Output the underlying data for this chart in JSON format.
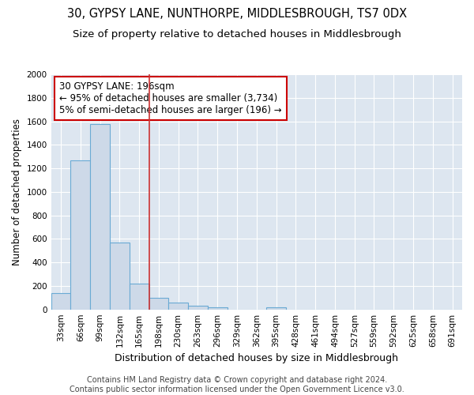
{
  "title": "30, GYPSY LANE, NUNTHORPE, MIDDLESBROUGH, TS7 0DX",
  "subtitle": "Size of property relative to detached houses in Middlesbrough",
  "xlabel": "Distribution of detached houses by size in Middlesbrough",
  "ylabel": "Number of detached properties",
  "bin_labels": [
    "33sqm",
    "66sqm",
    "99sqm",
    "132sqm",
    "165sqm",
    "198sqm",
    "230sqm",
    "263sqm",
    "296sqm",
    "329sqm",
    "362sqm",
    "395sqm",
    "428sqm",
    "461sqm",
    "494sqm",
    "527sqm",
    "559sqm",
    "592sqm",
    "625sqm",
    "658sqm",
    "691sqm"
  ],
  "bar_values": [
    140,
    1270,
    1575,
    570,
    220,
    100,
    55,
    30,
    20,
    0,
    0,
    20,
    0,
    0,
    0,
    0,
    0,
    0,
    0,
    0,
    0
  ],
  "bar_color": "#cdd9e8",
  "bar_edge_color": "#6aaad4",
  "annotation_text": "30 GYPSY LANE: 196sqm\n← 95% of detached houses are smaller (3,734)\n5% of semi-detached houses are larger (196) →",
  "annotation_box_color": "#ffffff",
  "annotation_box_edge": "#cc0000",
  "vline_color": "#cc3333",
  "background_color": "#dde6f0",
  "grid_color": "#ffffff",
  "fig_bg_color": "#ffffff",
  "ylim": [
    0,
    2000
  ],
  "yticks": [
    0,
    200,
    400,
    600,
    800,
    1000,
    1200,
    1400,
    1600,
    1800,
    2000
  ],
  "footnote": "Contains HM Land Registry data © Crown copyright and database right 2024.\nContains public sector information licensed under the Open Government Licence v3.0.",
  "title_fontsize": 10.5,
  "subtitle_fontsize": 9.5,
  "xlabel_fontsize": 9,
  "ylabel_fontsize": 8.5,
  "tick_fontsize": 7.5,
  "annotation_fontsize": 8.5,
  "footnote_fontsize": 7
}
